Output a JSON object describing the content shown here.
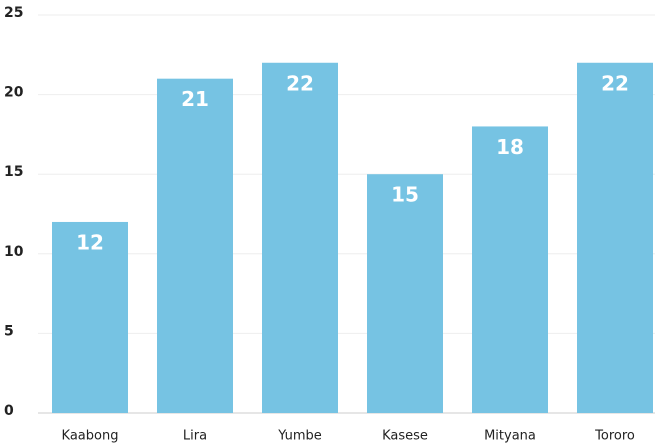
{
  "chart_data": {
    "type": "bar",
    "categories": [
      "Kaabong",
      "Lira",
      "Yumbe",
      "Kasese",
      "Mityana",
      "Tororo"
    ],
    "values": [
      12,
      21,
      22,
      15,
      18,
      22
    ],
    "color": "#76c3e3",
    "ylim": [
      0,
      25
    ],
    "yticks": [
      0,
      5,
      10,
      15,
      20,
      25
    ],
    "grid": true
  }
}
